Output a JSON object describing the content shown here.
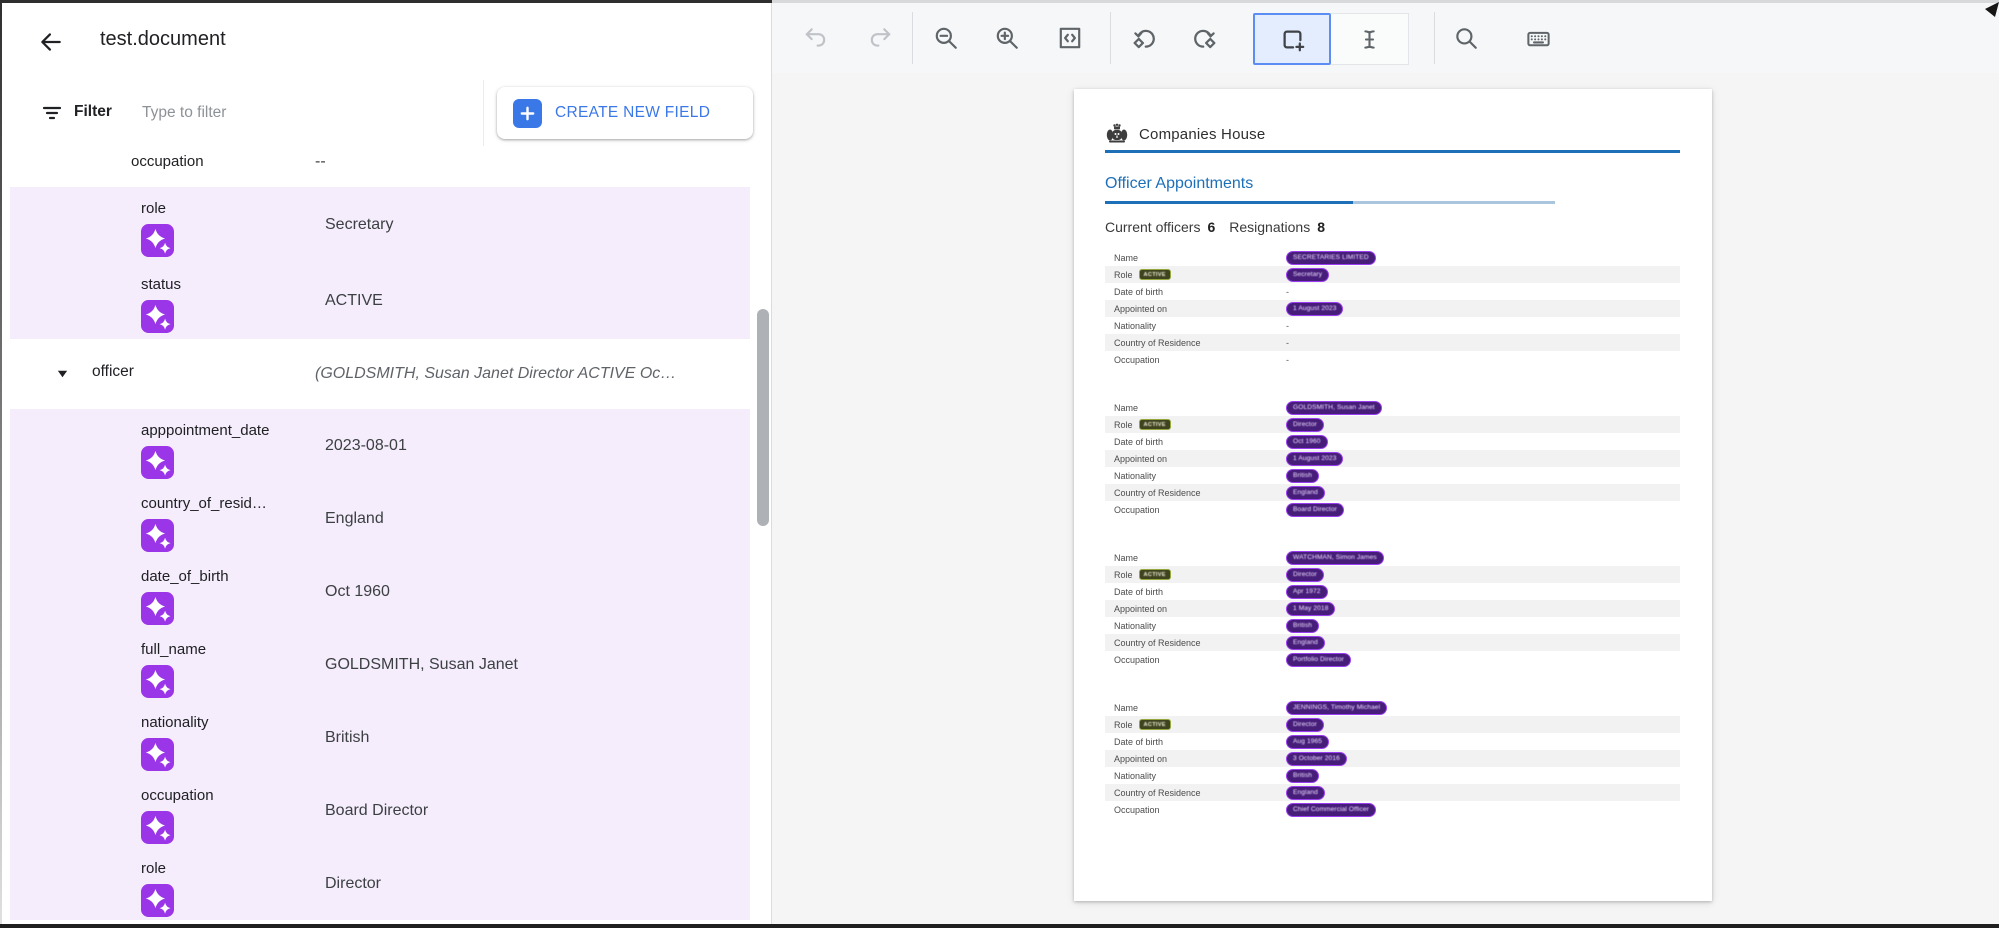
{
  "window": {
    "title": "test.document"
  },
  "filter": {
    "label": "Filter",
    "placeholder": "Type to filter",
    "create_button": "CREATE NEW FIELD"
  },
  "panel": {
    "groups": [
      {
        "type": "plain",
        "rows": [
          {
            "label": "occupation",
            "value": "--",
            "icon": false,
            "compact": true
          }
        ]
      },
      {
        "type": "highlight",
        "rows": [
          {
            "label": "role",
            "value": "Secretary",
            "icon": true
          },
          {
            "label": "status",
            "value": "ACTIVE",
            "icon": true
          }
        ]
      },
      {
        "type": "parent",
        "rows": [
          {
            "label": "officer",
            "value": "(GOLDSMITH, Susan Janet Director ACTIVE Oc…",
            "caret": true
          }
        ]
      },
      {
        "type": "highlight",
        "rows": [
          {
            "label": "apppointment_date",
            "value": "2023-08-01",
            "icon": true
          },
          {
            "label": "country_of_resid…",
            "value": "England",
            "icon": true
          },
          {
            "label": "date_of_birth",
            "value": "Oct 1960",
            "icon": true
          },
          {
            "label": "full_name",
            "value": "GOLDSMITH, Susan Janet",
            "icon": true
          },
          {
            "label": "nationality",
            "value": "British",
            "icon": true
          },
          {
            "label": "occupation",
            "value": "Board Director",
            "icon": true
          },
          {
            "label": "role",
            "value": "Director",
            "icon": true
          }
        ]
      }
    ],
    "icon_name": "gemini-spark-icon"
  },
  "toolbar": {
    "items": [
      {
        "type": "icon",
        "name": "undo",
        "disabled": true
      },
      {
        "type": "icon",
        "name": "redo",
        "disabled": true
      },
      {
        "type": "divider"
      },
      {
        "type": "icon",
        "name": "zoom-out"
      },
      {
        "type": "icon",
        "name": "zoom-in"
      },
      {
        "type": "icon",
        "name": "fit-view"
      },
      {
        "type": "divider"
      },
      {
        "type": "icon",
        "name": "rotate-left"
      },
      {
        "type": "icon",
        "name": "rotate-right"
      },
      {
        "type": "segment",
        "cells": [
          {
            "name": "add-bounding-box",
            "selected": true
          },
          {
            "name": "text-select",
            "selected": false
          }
        ]
      },
      {
        "type": "divider"
      },
      {
        "type": "icon",
        "name": "search"
      },
      {
        "type": "icon",
        "name": "keyboard"
      }
    ]
  },
  "document": {
    "brand": "Companies House",
    "section_title": "Officer Appointments",
    "summary": {
      "current_label": "Current officers",
      "current_value": "6",
      "resignations_label": "Resignations",
      "resignations_value": "8"
    },
    "row_labels": [
      "Name",
      "Role",
      "Date of birth",
      "Appointed on",
      "Nationality",
      "Country of Residence",
      "Occupation"
    ],
    "status_badge": "ACTIVE",
    "officers": [
      {
        "name": {
          "t": "SECRETARIES LIMITED",
          "pill": true
        },
        "role": {
          "t": "Secretary",
          "pill": true
        },
        "dob": {
          "t": "-",
          "pill": false
        },
        "appointed": {
          "t": "1 August 2023",
          "pill": true
        },
        "nationality": {
          "t": "-",
          "pill": false
        },
        "country": {
          "t": "-",
          "pill": false
        },
        "occupation": {
          "t": "-",
          "pill": false
        }
      },
      {
        "name": {
          "t": "GOLDSMITH, Susan Janet",
          "pill": true
        },
        "role": {
          "t": "Director",
          "pill": true
        },
        "dob": {
          "t": "Oct 1960",
          "pill": true
        },
        "appointed": {
          "t": "1 August 2023",
          "pill": true
        },
        "nationality": {
          "t": "British",
          "pill": true
        },
        "country": {
          "t": "England",
          "pill": true
        },
        "occupation": {
          "t": "Board Director",
          "pill": true
        }
      },
      {
        "name": {
          "t": "WATCHMAN, Simon James",
          "pill": true
        },
        "role": {
          "t": "Director",
          "pill": true
        },
        "dob": {
          "t": "Apr 1972",
          "pill": true
        },
        "appointed": {
          "t": "1 May 2018",
          "pill": true
        },
        "nationality": {
          "t": "British",
          "pill": true
        },
        "country": {
          "t": "England",
          "pill": true
        },
        "occupation": {
          "t": "Portfolio Director",
          "pill": true
        }
      },
      {
        "name": {
          "t": "JENNINGS, Timothy Michael",
          "pill": true
        },
        "role": {
          "t": "Director",
          "pill": true
        },
        "dob": {
          "t": "Aug 1965",
          "pill": true
        },
        "appointed": {
          "t": "3 October 2016",
          "pill": true
        },
        "nationality": {
          "t": "British",
          "pill": true
        },
        "country": {
          "t": "England",
          "pill": true
        },
        "occupation": {
          "t": "Chief Commercial Officer",
          "pill": true
        }
      }
    ]
  },
  "colors": {
    "accent_blue": "#3b78e7",
    "brand_blue": "#1d70b8",
    "spark_purple": "#9b35e8",
    "highlight_lavender": "#f5ecfc",
    "annotation_purple": "#9a3df0",
    "status_olive": "#94a73d"
  }
}
